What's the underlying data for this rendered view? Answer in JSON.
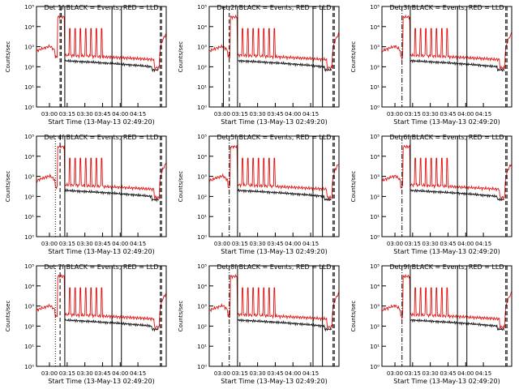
{
  "chart_data": [
    {
      "type": "line",
      "title": "Det 1f BLACK = Events, RED = LLD",
      "xlabel": "Start Time (13-May-13 02:49:20)",
      "ylabel": "Counts/sec",
      "x_ticks": [
        "03:00",
        "03:15",
        "03:30",
        "03:45",
        "04:00",
        "04:15"
      ],
      "y_ticks": [
        "10⁰",
        "10¹",
        "10²",
        "10³",
        "10⁴",
        "10⁵"
      ],
      "ylim": [
        1,
        100000
      ],
      "xlim_minutes": [
        0,
        110
      ],
      "markers": {
        "dotted": [],
        "dashdot": [],
        "dashed": [
          20,
          21,
          105,
          106
        ],
        "solid": [
          24,
          64,
          72
        ]
      },
      "series": [
        {
          "name": "Events",
          "color": "#000000"
        },
        {
          "name": "LLD",
          "color": "#e01010"
        }
      ]
    },
    {
      "type": "line",
      "title": "Det 2f BLACK = Events, RED = LLD",
      "xlabel": "Start Time (13-May-13 02:49:20)",
      "ylabel": "Counts/sec",
      "x_ticks": [
        "03:00",
        "03:15",
        "03:30",
        "03:45",
        "04:00",
        "04:15"
      ],
      "y_ticks": [
        "10⁰",
        "10¹",
        "10²",
        "10³",
        "10⁴",
        "10⁵"
      ],
      "ylim": [
        1,
        100000
      ],
      "xlim_minutes": [
        0,
        110
      ],
      "markers": {
        "dotted": [],
        "dashdot": [],
        "dashed": [
          17,
          105,
          106
        ],
        "solid": [
          12,
          24,
          88,
          96
        ]
      },
      "series": [
        {
          "name": "Events",
          "color": "#000000"
        },
        {
          "name": "LLD",
          "color": "#e01010"
        }
      ]
    },
    {
      "type": "line",
      "title": "Det 3f BLACK = Events, RED = LLD",
      "xlabel": "Start Time (13-May-13 02:49:20)",
      "ylabel": "Counts/sec",
      "x_ticks": [
        "03:00",
        "03:15",
        "03:30",
        "03:45",
        "04:00",
        "04:15"
      ],
      "y_ticks": [
        "10⁰",
        "10¹",
        "10²",
        "10³",
        "10⁴",
        "10⁵"
      ],
      "ylim": [
        1,
        100000
      ],
      "xlim_minutes": [
        0,
        110
      ],
      "markers": {
        "dotted": [],
        "dashdot": [
          17
        ],
        "dashed": [
          105,
          106
        ],
        "solid": [
          24,
          64,
          72
        ]
      },
      "series": [
        {
          "name": "Events",
          "color": "#000000"
        },
        {
          "name": "LLD",
          "color": "#e01010"
        }
      ]
    },
    {
      "type": "line",
      "title": "Det 4f BLACK = Events, RED = LLD",
      "xlabel": "Start Time (13-May-13 02:49:20)",
      "ylabel": "Counts/sec",
      "x_ticks": [
        "03:00",
        "03:15",
        "03:30",
        "03:45",
        "04:00",
        "04:15"
      ],
      "y_ticks": [
        "10⁰",
        "10¹",
        "10²",
        "10³",
        "10⁴",
        "10⁵"
      ],
      "ylim": [
        1,
        100000
      ],
      "xlim_minutes": [
        0,
        110
      ],
      "markers": {
        "dotted": [
          16
        ],
        "dashdot": [],
        "dashed": [
          20,
          105,
          106
        ],
        "solid": [
          24,
          64,
          72
        ]
      },
      "series": [
        {
          "name": "Events",
          "color": "#000000"
        },
        {
          "name": "LLD",
          "color": "#e01010"
        }
      ]
    },
    {
      "type": "line",
      "title": "Det 5f BLACK = Events, RED = LLD",
      "xlabel": "Start Time (13-May-13 02:49:20)",
      "ylabel": "Counts/sec",
      "x_ticks": [
        "03:00",
        "03:15",
        "03:30",
        "03:45",
        "04:00",
        "04:15"
      ],
      "y_ticks": [
        "10⁰",
        "10¹",
        "10²",
        "10³",
        "10⁴",
        "10⁵"
      ],
      "ylim": [
        1,
        100000
      ],
      "xlim_minutes": [
        0,
        110
      ],
      "markers": {
        "dotted": [],
        "dashdot": [
          17
        ],
        "dashed": [
          105,
          106
        ],
        "solid": [
          24,
          88,
          96
        ]
      },
      "series": [
        {
          "name": "Events",
          "color": "#000000"
        },
        {
          "name": "LLD",
          "color": "#e01010"
        }
      ]
    },
    {
      "type": "line",
      "title": "Det 6f BLACK = Events, RED = LLD",
      "xlabel": "Start Time (13-May-13 02:49:20)",
      "ylabel": "Counts/sec",
      "x_ticks": [
        "03:00",
        "03:15",
        "03:30",
        "03:45",
        "04:00",
        "04:15"
      ],
      "y_ticks": [
        "10⁰",
        "10¹",
        "10²",
        "10³",
        "10⁴",
        "10⁵"
      ],
      "ylim": [
        1,
        100000
      ],
      "xlim_minutes": [
        0,
        110
      ],
      "markers": {
        "dotted": [],
        "dashdot": [
          17
        ],
        "dashed": [
          105,
          106
        ],
        "solid": [
          24,
          64,
          72
        ]
      },
      "series": [
        {
          "name": "Events",
          "color": "#000000"
        },
        {
          "name": "LLD",
          "color": "#e01010"
        }
      ]
    },
    {
      "type": "line",
      "title": "Det 7f BLACK = Events, RED = LLD",
      "xlabel": "Start Time (13-May-13 02:49:20)",
      "ylabel": "Counts/sec",
      "x_ticks": [
        "03:00",
        "03:15",
        "03:30",
        "03:45",
        "04:00",
        "04:15"
      ],
      "y_ticks": [
        "10⁰",
        "10¹",
        "10²",
        "10³",
        "10⁴",
        "10⁵"
      ],
      "ylim": [
        1,
        100000
      ],
      "xlim_minutes": [
        0,
        110
      ],
      "markers": {
        "dotted": [
          16
        ],
        "dashdot": [],
        "dashed": [
          20,
          105,
          106
        ],
        "solid": [
          24,
          64,
          72
        ]
      },
      "series": [
        {
          "name": "Events",
          "color": "#000000"
        },
        {
          "name": "LLD",
          "color": "#e01010"
        }
      ]
    },
    {
      "type": "line",
      "title": "Det 8f BLACK = Events, RED = LLD",
      "xlabel": "Start Time (13-May-13 02:49:20)",
      "ylabel": "Counts/sec",
      "x_ticks": [
        "03:00",
        "03:15",
        "03:30",
        "03:45",
        "04:00",
        "04:15"
      ],
      "y_ticks": [
        "10⁰",
        "10¹",
        "10²",
        "10³",
        "10⁴",
        "10⁵"
      ],
      "ylim": [
        1,
        100000
      ],
      "xlim_minutes": [
        0,
        110
      ],
      "markers": {
        "dotted": [],
        "dashdot": [
          17
        ],
        "dashed": [
          105,
          106
        ],
        "solid": [
          24,
          88,
          96
        ]
      },
      "series": [
        {
          "name": "Events",
          "color": "#000000"
        },
        {
          "name": "LLD",
          "color": "#e01010"
        }
      ]
    },
    {
      "type": "line",
      "title": "Det 9f BLACK = Events, RED = LLD",
      "xlabel": "Start Time (13-May-13 02:49:20)",
      "ylabel": "Counts/sec",
      "x_ticks": [
        "03:00",
        "03:15",
        "03:30",
        "03:45",
        "04:00",
        "04:15"
      ],
      "y_ticks": [
        "10⁰",
        "10¹",
        "10²",
        "10³",
        "10⁴",
        "10⁵"
      ],
      "ylim": [
        1,
        100000
      ],
      "xlim_minutes": [
        0,
        110
      ],
      "markers": {
        "dotted": [],
        "dashdot": [
          17
        ],
        "dashed": [
          105,
          106
        ],
        "solid": [
          24,
          64,
          72
        ]
      },
      "series": [
        {
          "name": "Events",
          "color": "#000000"
        },
        {
          "name": "LLD",
          "color": "#e01010"
        }
      ]
    }
  ]
}
